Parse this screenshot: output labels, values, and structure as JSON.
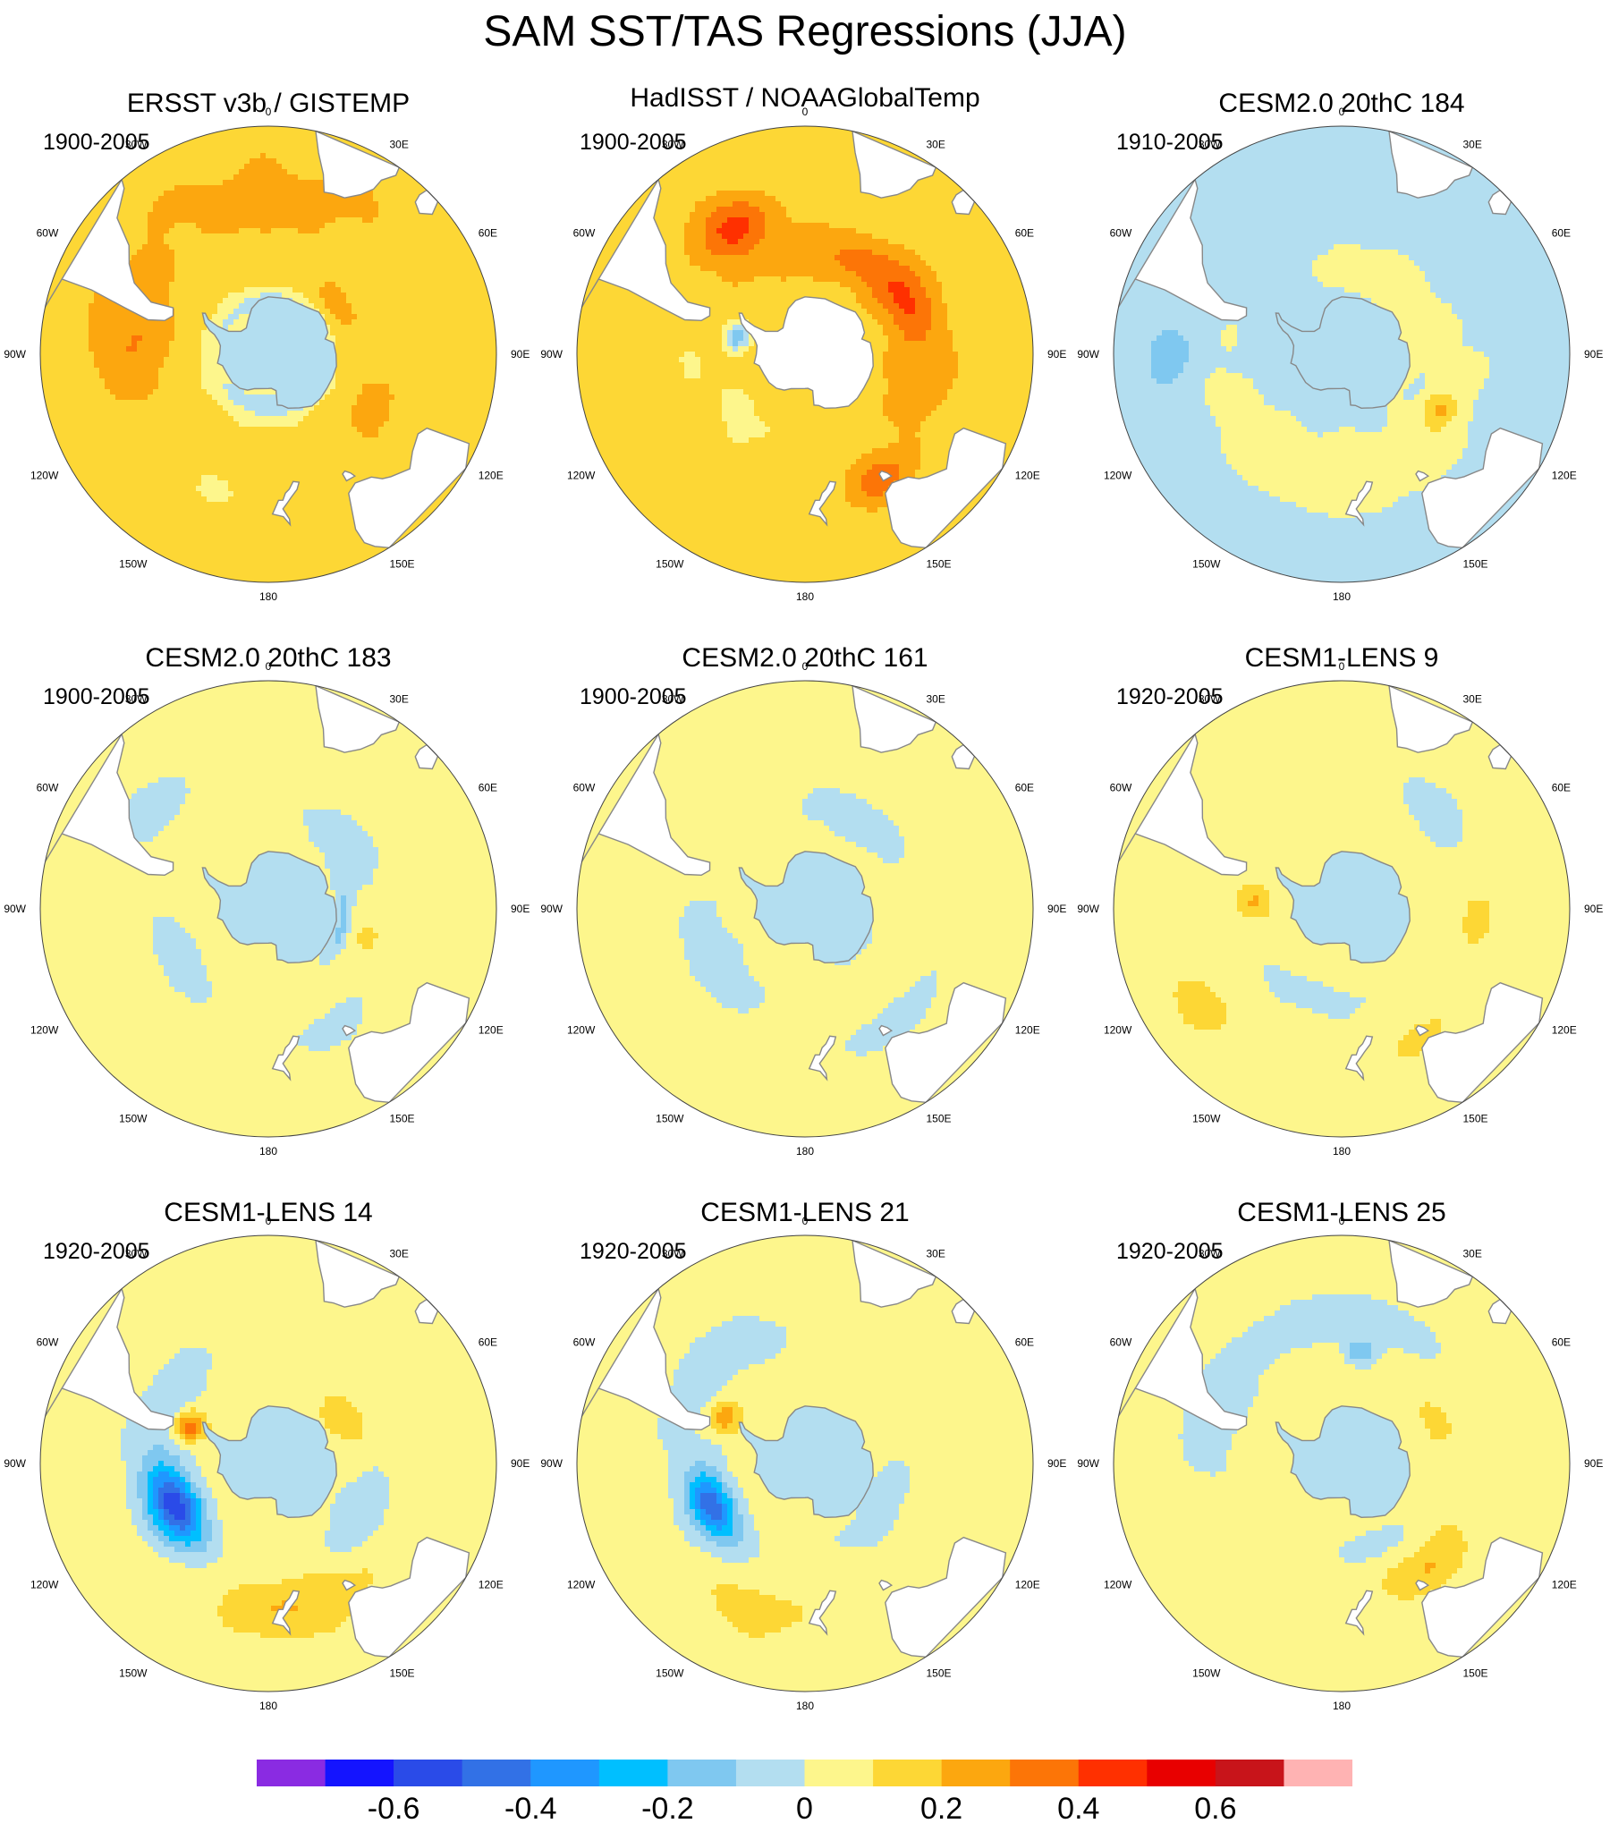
{
  "title": "SAM SST/TAS Regressions (JJA)",
  "colors": {
    "land": "#ffffff",
    "coast": "#888888",
    "outline": "#444444"
  },
  "lon_labels": [
    "0",
    "30E",
    "60E",
    "90E",
    "120E",
    "150E",
    "180",
    "150W",
    "120W",
    "90W",
    "60W",
    "30W"
  ],
  "chart_data": {
    "type": "heatmap",
    "description_kind": "polar stereographic regression maps",
    "colorbar": {
      "levels": [
        -0.7,
        -0.6,
        -0.5,
        -0.4,
        -0.3,
        -0.2,
        -0.1,
        0,
        0.1,
        0.2,
        0.3,
        0.4,
        0.5,
        0.6,
        0.7
      ],
      "colors": [
        "#8a2be2",
        "#1414ff",
        "#2a4be8",
        "#3271e6",
        "#1f97ff",
        "#00bfff",
        "#7fc8f0",
        "#b3def0",
        "#fdf68c",
        "#fdd735",
        "#fca70f",
        "#fc7507",
        "#ff3000",
        "#e80000",
        "#c8141a",
        "#ffb3b3"
      ],
      "tick_labels": [
        "-0.6",
        "-0.4",
        "-0.2",
        "0",
        "0.2",
        "0.4",
        "0.6"
      ],
      "tick_values": [
        -0.6,
        -0.4,
        -0.2,
        0,
        0.2,
        0.4,
        0.6
      ]
    },
    "panels": [
      {
        "title": "ERSST v3b / GISTEMP",
        "period": "1900-2005",
        "background": 0.12,
        "blobs": [
          {
            "lon": 0,
            "lat": -38,
            "rlat": 22,
            "rlon": 75,
            "val": 0.22
          },
          {
            "lon": 275,
            "lat": -45,
            "rlat": 12,
            "rlon": 28,
            "val": 0.28
          },
          {
            "lon": 120,
            "lat": -50,
            "rlat": 10,
            "rlon": 25,
            "val": 0.22
          },
          {
            "lon": 180,
            "lat": -40,
            "rlat": 14,
            "rlon": 40,
            "val": 0.12
          },
          {
            "lon": 60,
            "lat": -62,
            "rlat": 8,
            "rlon": 40,
            "val": 0.2
          },
          {
            "lon": 90,
            "lat": -72,
            "rlat": 5,
            "rlon": 180,
            "val": -0.12
          },
          {
            "lon": 210,
            "lat": -42,
            "rlat": 10,
            "rlon": 20,
            "val": 0.1
          }
        ]
      },
      {
        "title": "HadISST / NOAAGlobalTemp",
        "period": "1900-2005",
        "background": 0.15,
        "blobs": [
          {
            "lon": 20,
            "lat": -55,
            "rlat": 8,
            "rlon": 60,
            "val": 0.3
          },
          {
            "lon": 330,
            "lat": -42,
            "rlat": 8,
            "rlon": 15,
            "val": 0.45
          },
          {
            "lon": 60,
            "lat": -50,
            "rlat": 8,
            "rlon": 25,
            "val": 0.35
          },
          {
            "lon": 150,
            "lat": -42,
            "rlat": 6,
            "rlon": 12,
            "val": 0.38
          },
          {
            "lon": 270,
            "lat": -50,
            "rlat": 8,
            "rlon": 20,
            "val": 0.1
          },
          {
            "lon": 225,
            "lat": -60,
            "rlat": 10,
            "rlon": 30,
            "val": 0.08
          },
          {
            "lon": 285,
            "lat": -66,
            "rlat": 4,
            "rlon": 12,
            "val": -0.18
          },
          {
            "lon": 110,
            "lat": -50,
            "rlat": 15,
            "rlon": 30,
            "val": 0.22
          }
        ]
      },
      {
        "title": "CESM2.0 20thC 184",
        "period": "1910-2005",
        "background": -0.04,
        "blobs": [
          {
            "lon": 180,
            "lat": -50,
            "rlat": 12,
            "rlon": 90,
            "val": 0.08
          },
          {
            "lon": 30,
            "lat": -58,
            "rlat": 6,
            "rlon": 45,
            "val": 0.08
          },
          {
            "lon": 120,
            "lat": -52,
            "rlat": 5,
            "rlon": 10,
            "val": 0.14
          },
          {
            "lon": 270,
            "lat": -35,
            "rlat": 8,
            "rlon": 12,
            "val": -0.15
          },
          {
            "lon": 60,
            "lat": -66,
            "rlat": 3,
            "rlon": 60,
            "val": 0.06
          }
        ]
      },
      {
        "title": "CESM2.0 20thC 183",
        "period": "1900-2005",
        "background": 0.06,
        "blobs": [
          {
            "lon": 240,
            "lat": -55,
            "rlat": 8,
            "rlon": 30,
            "val": -0.06
          },
          {
            "lon": 50,
            "lat": -55,
            "rlat": 8,
            "rlon": 35,
            "val": -0.06
          },
          {
            "lon": 150,
            "lat": -45,
            "rlat": 6,
            "rlon": 20,
            "val": -0.06
          },
          {
            "lon": 105,
            "lat": -55,
            "rlat": 4,
            "rlon": 8,
            "val": 0.14
          },
          {
            "lon": 100,
            "lat": -64,
            "rlat": 3,
            "rlon": 40,
            "val": -0.12
          },
          {
            "lon": 310,
            "lat": -40,
            "rlat": 8,
            "rlon": 18,
            "val": -0.06
          }
        ]
      },
      {
        "title": "CESM2.0 20thC 161",
        "period": "1900-2005",
        "background": 0.06,
        "blobs": [
          {
            "lon": 240,
            "lat": -55,
            "rlat": 10,
            "rlon": 45,
            "val": -0.06
          },
          {
            "lon": 30,
            "lat": -55,
            "rlat": 8,
            "rlon": 40,
            "val": -0.06
          },
          {
            "lon": 140,
            "lat": -42,
            "rlat": 6,
            "rlon": 25,
            "val": -0.06
          },
          {
            "lon": 120,
            "lat": -68,
            "rlat": 3,
            "rlon": 30,
            "val": -0.12
          }
        ]
      },
      {
        "title": "CESM1-LENS 9",
        "period": "1920-2005",
        "background": 0.06,
        "blobs": [
          {
            "lon": 275,
            "lat": -60,
            "rlat": 5,
            "rlon": 10,
            "val": 0.22
          },
          {
            "lon": 95,
            "lat": -45,
            "rlat": 4,
            "rlon": 10,
            "val": 0.16
          },
          {
            "lon": 235,
            "lat": -35,
            "rlat": 6,
            "rlon": 10,
            "val": 0.16
          },
          {
            "lon": 150,
            "lat": -40,
            "rlat": 4,
            "rlon": 10,
            "val": 0.16
          },
          {
            "lon": 200,
            "lat": -58,
            "rlat": 6,
            "rlon": 40,
            "val": -0.06
          },
          {
            "lon": 45,
            "lat": -45,
            "rlat": 8,
            "rlon": 20,
            "val": -0.06
          }
        ]
      },
      {
        "title": "CESM1-LENS 14",
        "period": "1920-2005",
        "background": 0.06,
        "blobs": [
          {
            "lon": 245,
            "lat": -55,
            "rlat": 7,
            "rlon": 20,
            "val": -0.3
          },
          {
            "lon": 245,
            "lat": -55,
            "rlat": 10,
            "rlon": 30,
            "val": -0.2
          },
          {
            "lon": 300,
            "lat": -50,
            "rlat": 10,
            "rlon": 40,
            "val": -0.06
          },
          {
            "lon": 295,
            "lat": -60,
            "rlat": 5,
            "rlon": 10,
            "val": 0.4
          },
          {
            "lon": 170,
            "lat": -42,
            "rlat": 8,
            "rlon": 30,
            "val": 0.2
          },
          {
            "lon": 60,
            "lat": -60,
            "rlat": 6,
            "rlon": 20,
            "val": 0.16
          },
          {
            "lon": 120,
            "lat": -55,
            "rlat": 10,
            "rlon": 30,
            "val": -0.06
          }
        ]
      },
      {
        "title": "CESM1-LENS 21",
        "period": "1920-2005",
        "background": 0.06,
        "blobs": [
          {
            "lon": 245,
            "lat": -55,
            "rlat": 6,
            "rlon": 18,
            "val": -0.3
          },
          {
            "lon": 245,
            "lat": -55,
            "rlat": 10,
            "rlon": 35,
            "val": -0.12
          },
          {
            "lon": 320,
            "lat": -45,
            "rlat": 10,
            "rlon": 40,
            "val": -0.06
          },
          {
            "lon": 300,
            "lat": -58,
            "rlat": 5,
            "rlon": 10,
            "val": 0.3
          },
          {
            "lon": 120,
            "lat": -60,
            "rlat": 8,
            "rlon": 40,
            "val": -0.06
          },
          {
            "lon": 200,
            "lat": -40,
            "rlat": 8,
            "rlon": 20,
            "val": 0.14
          }
        ]
      },
      {
        "title": "CESM1-LENS 25",
        "period": "1920-2005",
        "background": 0.06,
        "blobs": [
          {
            "lon": 0,
            "lat": -42,
            "rlat": 8,
            "rlon": 50,
            "val": -0.06
          },
          {
            "lon": 290,
            "lat": -45,
            "rlat": 10,
            "rlon": 30,
            "val": -0.06
          },
          {
            "lon": 140,
            "lat": -45,
            "rlat": 6,
            "rlon": 20,
            "val": 0.2
          },
          {
            "lon": 65,
            "lat": -55,
            "rlat": 4,
            "rlon": 12,
            "val": 0.16
          },
          {
            "lon": 160,
            "lat": -60,
            "rlat": 5,
            "rlon": 30,
            "val": -0.06
          },
          {
            "lon": 10,
            "lat": -52,
            "rlat": 4,
            "rlon": 8,
            "val": -0.15
          }
        ]
      }
    ]
  }
}
